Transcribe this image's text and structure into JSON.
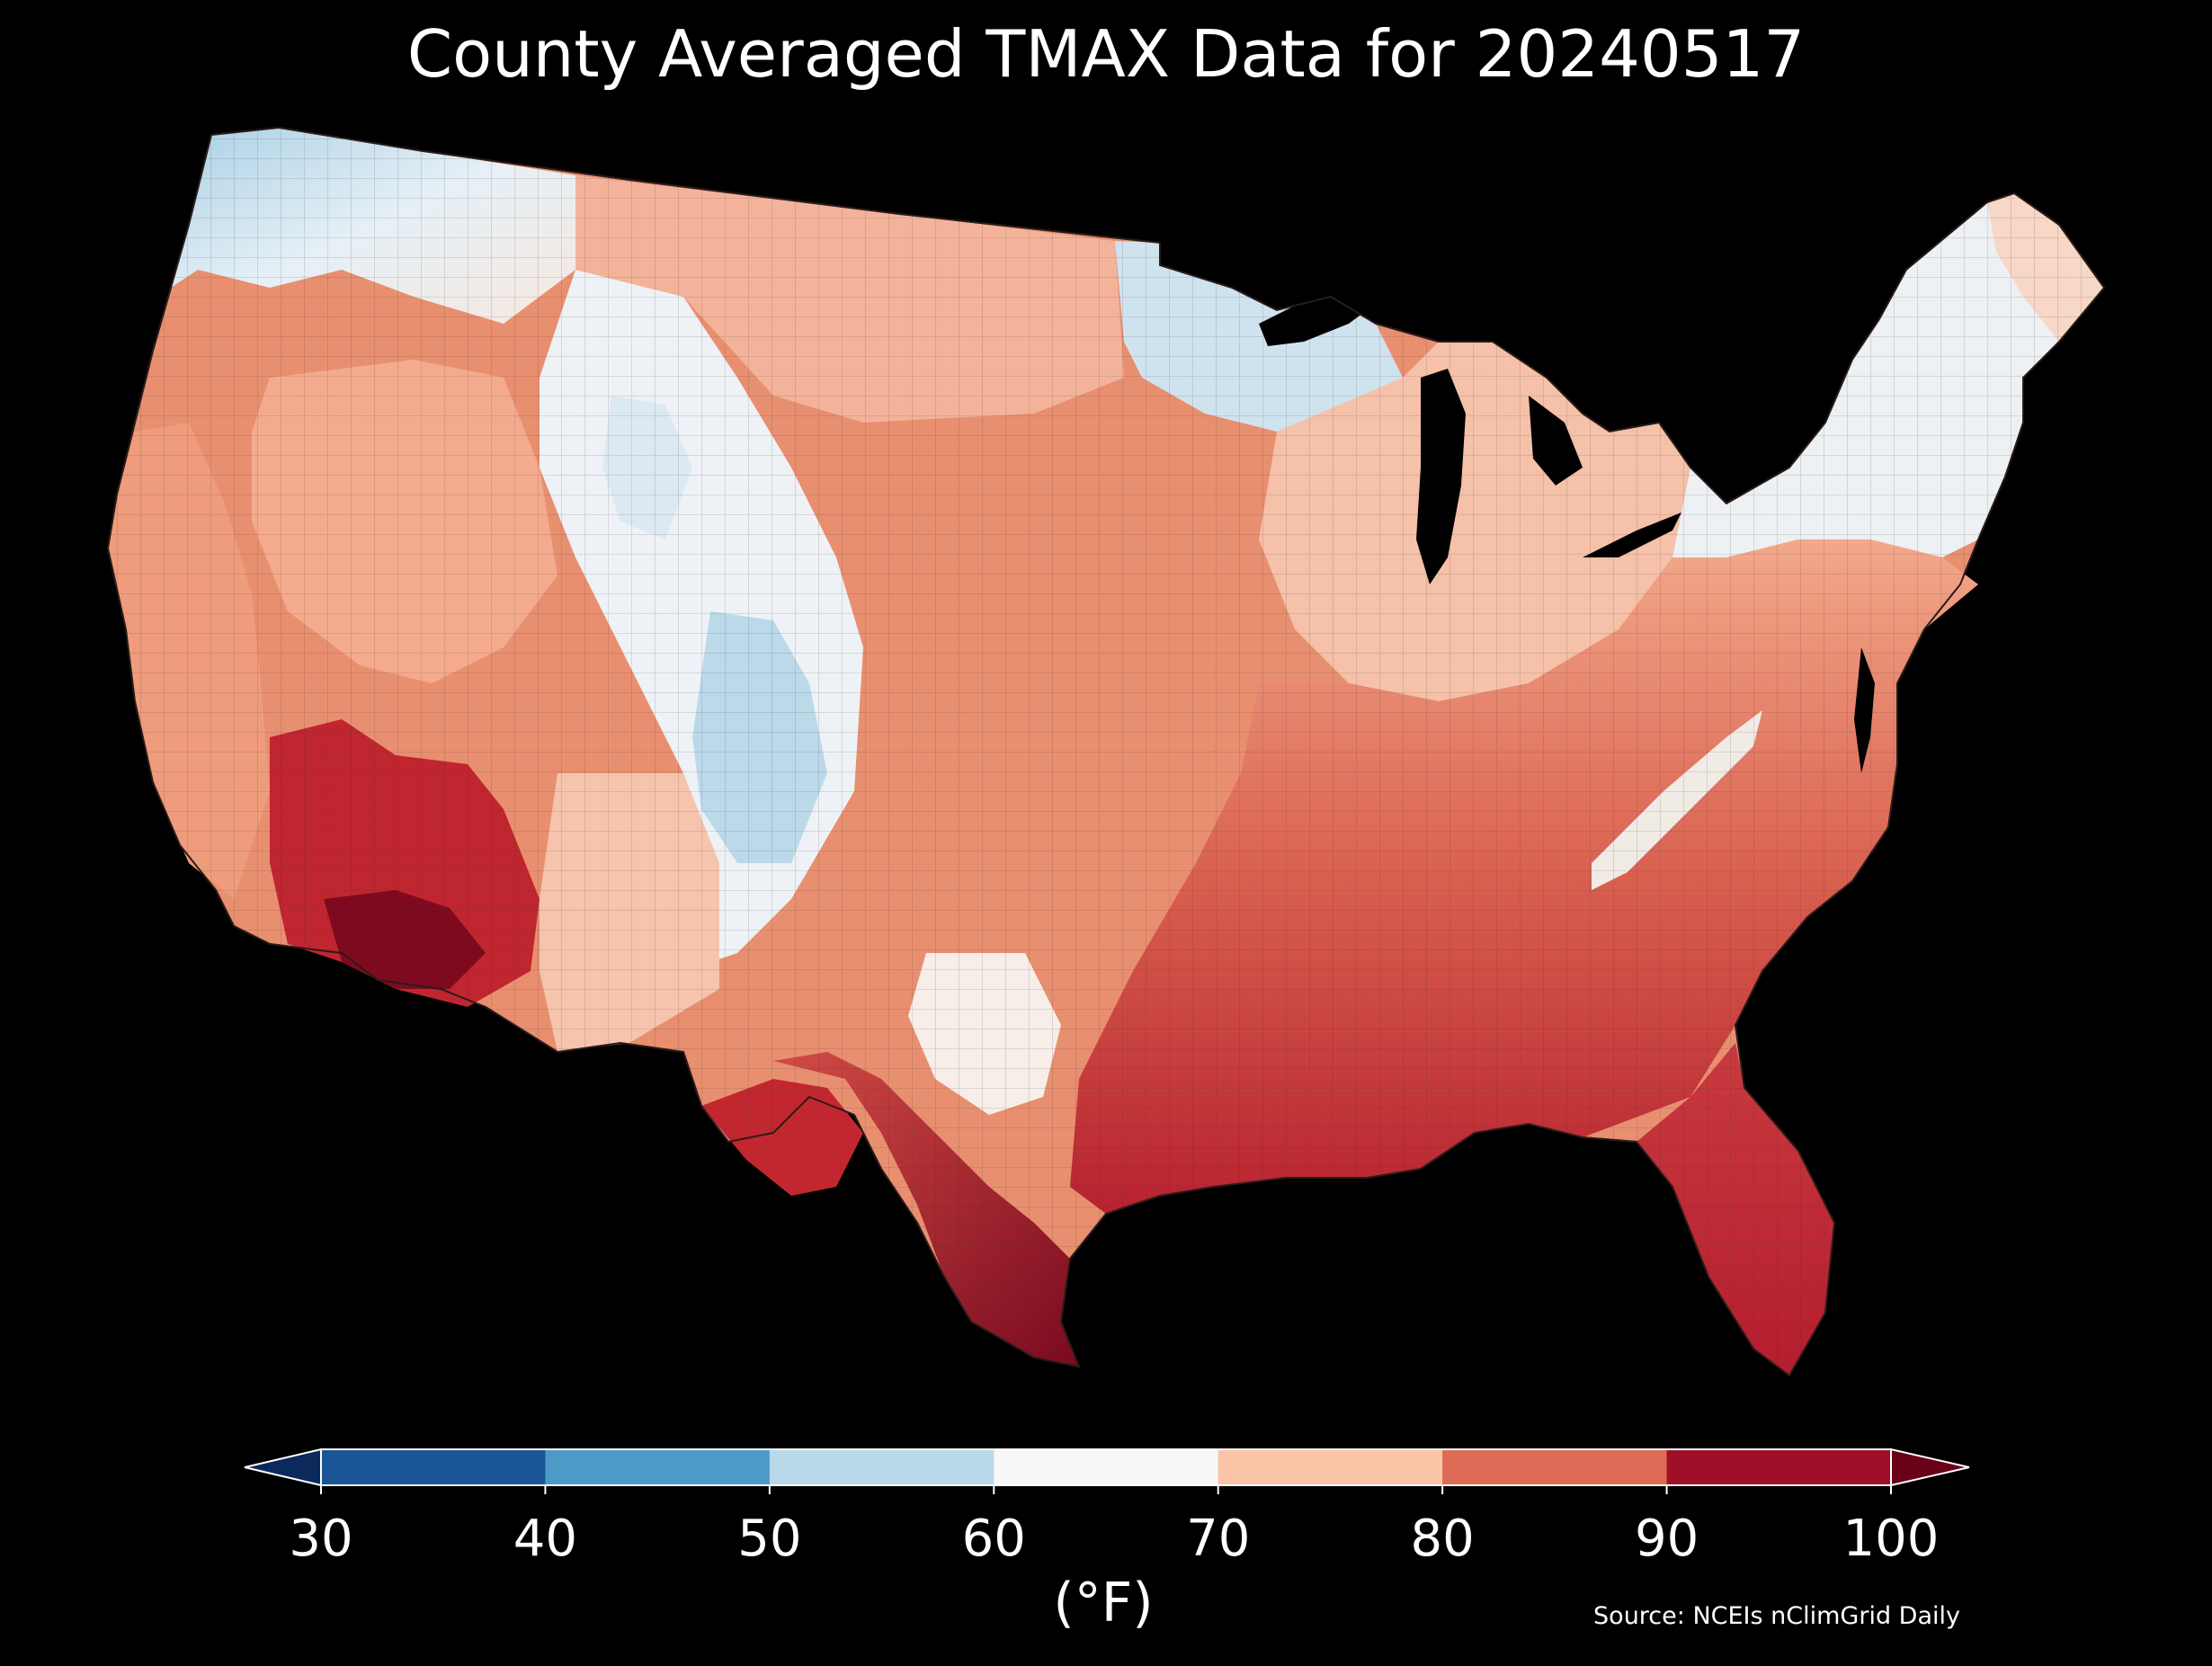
{
  "title": "County Averaged TMAX Data for 20240517",
  "colorbar": {
    "ticks": [
      "30",
      "40",
      "50",
      "60",
      "70",
      "80",
      "90",
      "100"
    ],
    "unit": "(°F)",
    "colors": [
      "#1a5597",
      "#4d9ac9",
      "#b8d9ea",
      "#f7f7f7",
      "#fac4a7",
      "#dd6b55",
      "#9f1028"
    ],
    "under_color": "#0b2a5b",
    "over_color": "#6b0019",
    "extend": "both"
  },
  "source": "Source: NCEIs nClimGrid Daily",
  "map": {
    "region": "contiguous-united-states",
    "units": "°F",
    "regions": [
      {
        "name": "pacific-northwest",
        "tmax": 62
      },
      {
        "name": "california-coast",
        "tmax": 76
      },
      {
        "name": "great-basin",
        "tmax": 78
      },
      {
        "name": "desert-southwest",
        "tmax": 98
      },
      {
        "name": "rockies",
        "tmax": 58
      },
      {
        "name": "northern-plains",
        "tmax": 74
      },
      {
        "name": "central-plains",
        "tmax": 80
      },
      {
        "name": "upper-midwest",
        "tmax": 60
      },
      {
        "name": "ohio-valley",
        "tmax": 77
      },
      {
        "name": "appalachians",
        "tmax": 68
      },
      {
        "name": "northeast",
        "tmax": 66
      },
      {
        "name": "southeast",
        "tmax": 88
      },
      {
        "name": "gulf-coast",
        "tmax": 90
      },
      {
        "name": "south-texas",
        "tmax": 99
      },
      {
        "name": "florida",
        "tmax": 92
      }
    ]
  }
}
